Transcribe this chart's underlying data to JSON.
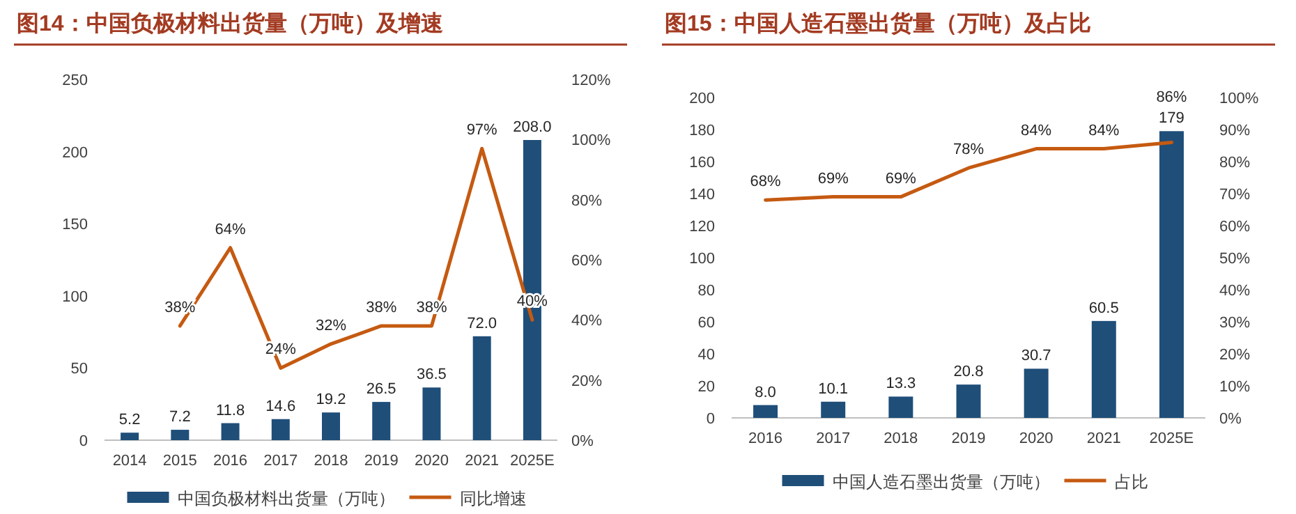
{
  "chart_data": [
    {
      "type": "bar",
      "title": "图14：中国负极材料出货量（万吨）及增速",
      "categories": [
        "2014",
        "2015",
        "2016",
        "2017",
        "2018",
        "2019",
        "2020",
        "2021",
        "2025E"
      ],
      "series": [
        {
          "name": "中国负极材料出货量（万吨）",
          "color": "#1f4e79",
          "values": [
            5.2,
            7.2,
            11.8,
            14.6,
            19.2,
            26.5,
            36.5,
            72.0,
            208.0
          ],
          "value_labels": [
            "5.2",
            "7.2",
            "11.8",
            "14.6",
            "19.2",
            "26.5",
            "36.5",
            "72.0",
            "208.0"
          ]
        },
        {
          "type": "line",
          "axis": "y2",
          "name": "同比增速",
          "color": "#c55a11",
          "values": [
            null,
            38,
            64,
            24,
            32,
            38,
            38,
            97,
            40
          ],
          "value_labels": [
            null,
            "38%",
            "64%",
            "24%",
            "32%",
            "38%",
            "38%",
            "97%",
            "40%"
          ]
        }
      ],
      "ylim": [
        0,
        250
      ],
      "yticks": [
        0,
        50,
        100,
        150,
        200,
        250
      ],
      "y2lim": [
        0,
        120
      ],
      "y2ticks": [
        {
          "value": 0,
          "label": "0%"
        },
        {
          "value": 20,
          "label": "20%"
        },
        {
          "value": 40,
          "label": "40%"
        },
        {
          "value": 60,
          "label": "60%"
        },
        {
          "value": 80,
          "label": "80%"
        },
        {
          "value": 100,
          "label": "100%"
        },
        {
          "value": 120,
          "label": "120%"
        }
      ],
      "legend": "bottom"
    },
    {
      "type": "bar",
      "title": "图15：中国人造石墨出货量（万吨）及占比",
      "categories": [
        "2016",
        "2017",
        "2018",
        "2019",
        "2020",
        "2021",
        "2025E"
      ],
      "series": [
        {
          "name": "中国人造石墨出货量（万吨）",
          "color": "#1f4e79",
          "values": [
            8.0,
            10.1,
            13.3,
            20.8,
            30.7,
            60.5,
            179
          ],
          "value_labels": [
            "8.0",
            "10.1",
            "13.3",
            "20.8",
            "30.7",
            "60.5",
            "179"
          ]
        },
        {
          "type": "line",
          "axis": "y2",
          "name": "占比",
          "color": "#c55a11",
          "values": [
            68,
            69,
            69,
            78,
            84,
            84,
            86
          ],
          "value_labels": [
            "68%",
            "69%",
            "69%",
            "78%",
            "84%",
            "84%",
            "86%"
          ]
        }
      ],
      "ylim": [
        0,
        200
      ],
      "yticks": [
        0,
        20,
        40,
        60,
        80,
        100,
        120,
        140,
        160,
        180,
        200
      ],
      "y2lim": [
        0,
        100
      ],
      "y2ticks": [
        {
          "value": 0,
          "label": "0%"
        },
        {
          "value": 10,
          "label": "10%"
        },
        {
          "value": 20,
          "label": "20%"
        },
        {
          "value": 30,
          "label": "30%"
        },
        {
          "value": 40,
          "label": "40%"
        },
        {
          "value": 50,
          "label": "50%"
        },
        {
          "value": 60,
          "label": "60%"
        },
        {
          "value": 70,
          "label": "70%"
        },
        {
          "value": 80,
          "label": "80%"
        },
        {
          "value": 90,
          "label": "90%"
        },
        {
          "value": 100,
          "label": "100%"
        }
      ],
      "legend": "bottom"
    }
  ]
}
